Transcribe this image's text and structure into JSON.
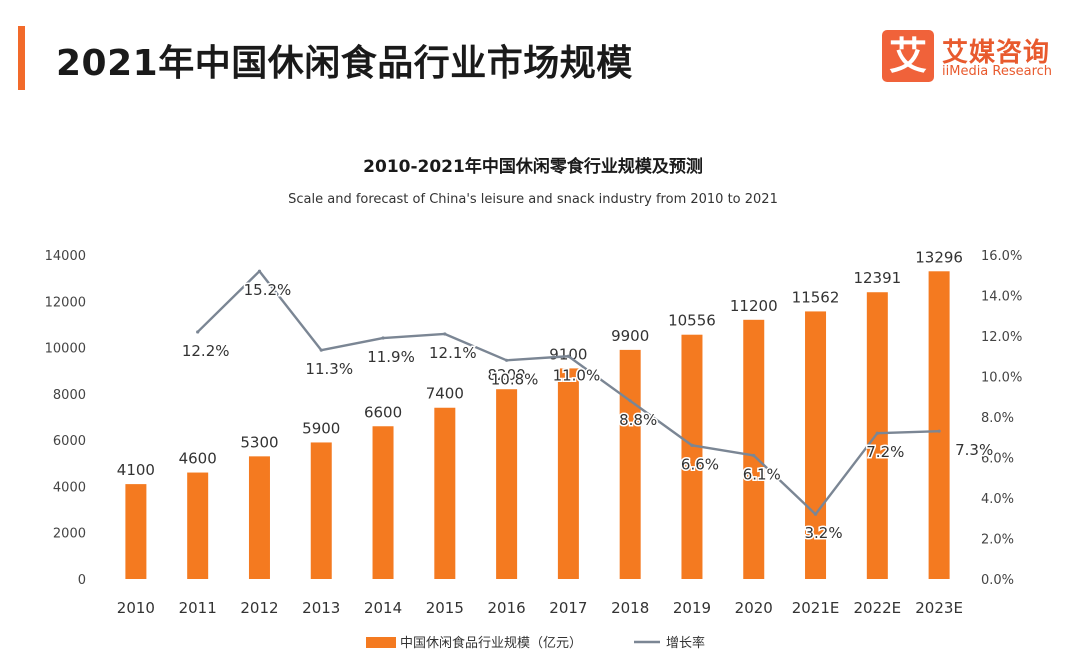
{
  "page": {
    "title": "2021年中国休闲食品行业市场规模"
  },
  "logo": {
    "mark": "艾",
    "name_cn": "艾媒咨询",
    "name_en": "iiMedia Research"
  },
  "colors": {
    "bar": "#f47a20",
    "line": "#7b8694",
    "accent": "#f26a2a"
  },
  "chart_data": {
    "type": "bar",
    "title": "2010-2021年中国休闲零食行业规模及预测",
    "subtitle": "Scale and forecast of China's leisure and snack industry from 2010 to 2021",
    "categories": [
      "2010",
      "2011",
      "2012",
      "2013",
      "2014",
      "2015",
      "2016",
      "2017",
      "2018",
      "2019",
      "2020",
      "2021E",
      "2022E",
      "2023E"
    ],
    "series": [
      {
        "name": "中国休闲食品行业规模（亿元）",
        "type": "bar",
        "axis": "left",
        "values": [
          4100,
          4600,
          5300,
          5900,
          6600,
          7400,
          8200,
          9100,
          9900,
          10556,
          11200,
          11562,
          12391,
          13296
        ]
      },
      {
        "name": "增长率",
        "type": "line",
        "axis": "right",
        "values": [
          null,
          12.2,
          15.2,
          11.3,
          11.9,
          12.1,
          10.8,
          11.0,
          8.8,
          6.6,
          6.1,
          3.2,
          7.2,
          7.3
        ],
        "labels": [
          null,
          "12.2%",
          "15.2%",
          "11.3%",
          "11.9%",
          "12.1%",
          "10.8%",
          "11.0%",
          "8.8%",
          "6.6%",
          "6.1%",
          "3.2%",
          "7.2%",
          "7.3%"
        ]
      }
    ],
    "y_left": {
      "range": [
        0,
        14000
      ],
      "ticks": [
        "0",
        "2000",
        "4000",
        "6000",
        "8000",
        "10000",
        "12000",
        "14000"
      ]
    },
    "y_right": {
      "range": [
        0,
        16
      ],
      "ticks": [
        "0.0%",
        "2.0%",
        "4.0%",
        "6.0%",
        "8.0%",
        "10.0%",
        "12.0%",
        "14.0%",
        "16.0%"
      ]
    },
    "grid": false,
    "legend": "bottom-center"
  }
}
